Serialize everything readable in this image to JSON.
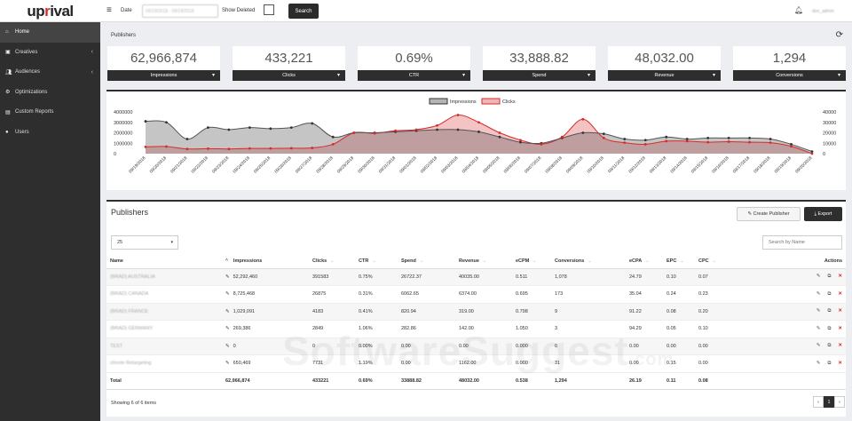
{
  "brand": {
    "logo_prefix": "up",
    "logo_accent": "r",
    "logo_suffix": "ival"
  },
  "topbar": {
    "menu_icon": "hamburger-icon",
    "date_label": "Date",
    "date_value": "09/19/2018 - 09/19/2018",
    "show_deleted_label": "Show Deleted",
    "search_label": "Search",
    "bell_icon": "bell-icon",
    "user": "don_admin"
  },
  "sidebar": {
    "items": [
      {
        "label": "Home",
        "icon": "home-icon",
        "active": true
      },
      {
        "label": "Creatives",
        "icon": "image-icon",
        "chevron": true
      },
      {
        "label": "Audiences",
        "icon": "users-icon",
        "chevron": true
      },
      {
        "label": "Optimizations",
        "icon": "cogs-icon"
      },
      {
        "label": "Custom Reports",
        "icon": "file-icon"
      },
      {
        "label": "Users",
        "icon": "user-icon"
      }
    ]
  },
  "page": {
    "title": "Publishers",
    "refresh_icon": "refresh-icon"
  },
  "stats": [
    {
      "value": "62,966,874",
      "label": "Impressions"
    },
    {
      "value": "433,221",
      "label": "Clicks"
    },
    {
      "value": "0.69%",
      "label": "CTR"
    },
    {
      "value": "33,888.82",
      "label": "Spend"
    },
    {
      "value": "48,032.00",
      "label": "Revenue"
    },
    {
      "value": "1,294",
      "label": "Conversions"
    }
  ],
  "chart_data": {
    "type": "area",
    "legend": [
      "Impressions",
      "Clicks"
    ],
    "legend_position": "top-center",
    "y_left_ticks": [
      "4000000",
      "3000000",
      "2000000",
      "1000000",
      "0"
    ],
    "y_right_ticks": [
      "40000",
      "30000",
      "20000",
      "10000",
      "0"
    ],
    "ylim_left": [
      0,
      4000000
    ],
    "ylim_right": [
      0,
      40000
    ],
    "colors": {
      "Impressions": "#555555",
      "Clicks": "#d62b2b"
    },
    "x": [
      "09/19/2018",
      "09/20/2018",
      "09/21/2018",
      "09/22/2018",
      "09/23/2018",
      "09/24/2018",
      "09/25/2018",
      "09/26/2018",
      "09/27/2018",
      "09/28/2018",
      "09/29/2018",
      "09/30/2018",
      "09/31/2018",
      "09/01/2018",
      "09/02/2018",
      "09/03/2018",
      "09/04/2018",
      "09/05/2018",
      "09/06/2018",
      "09/07/2018",
      "09/08/2018",
      "09/09/2018",
      "09/10/2018",
      "09/11/2018",
      "09/12/2018",
      "09/13/2018",
      "09/14/2018",
      "09/15/2018",
      "09/16/2018",
      "09/17/2018",
      "09/18/2018",
      "09/19/2018",
      "09/20/2018"
    ],
    "series": [
      {
        "name": "Impressions",
        "values": [
          3100000,
          3000000,
          1400000,
          2500000,
          2300000,
          2500000,
          2400000,
          2500000,
          2900000,
          1600000,
          2000000,
          2000000,
          2100000,
          2200000,
          2300000,
          2300000,
          2100000,
          1600000,
          1100000,
          1000000,
          1500000,
          2000000,
          1900000,
          1400000,
          1300000,
          1600000,
          1400000,
          1500000,
          1500000,
          1500000,
          1400000,
          900000,
          200000
        ]
      },
      {
        "name": "Clicks",
        "values": [
          6500,
          6800,
          4500,
          4800,
          4500,
          5000,
          5000,
          5200,
          5500,
          9000,
          20000,
          19500,
          22000,
          23000,
          27000,
          37000,
          30000,
          20000,
          13000,
          9000,
          16000,
          33000,
          15000,
          10500,
          9000,
          12000,
          12000,
          11000,
          11500,
          11000,
          10500,
          7000,
          0
        ]
      }
    ]
  },
  "table_panel": {
    "title": "Publishers",
    "create_label": "Create Publisher",
    "export_label": "Export",
    "page_size": "25",
    "search_placeholder": "Search by Name",
    "columns": [
      "Name",
      "Impressions",
      "Clicks",
      "CTR",
      "Spend",
      "Revenue",
      "eCPM",
      "Conversions",
      "eCPA",
      "EPC",
      "CPC",
      "Actions"
    ],
    "rows": [
      {
        "name": "(BRAD) AUSTRALIA",
        "impressions": "52,292,460",
        "clicks": "391583",
        "ctr": "0.75%",
        "spend": "26722.37",
        "revenue": "40035.00",
        "ecpm": "0.511",
        "conversions": "1,078",
        "ecpa": "24.79",
        "epc": "0.10",
        "cpc": "0.07"
      },
      {
        "name": "(BRAD) CANADA",
        "impressions": "8,725,468",
        "clicks": "26875",
        "ctr": "0.31%",
        "spend": "6062.65",
        "revenue": "6374.00",
        "ecpm": "0.695",
        "conversions": "173",
        "ecpa": "35.04",
        "epc": "0.24",
        "cpc": "0.23"
      },
      {
        "name": "(BRAD) FRANCE",
        "impressions": "1,029,091",
        "clicks": "4183",
        "ctr": "0.41%",
        "spend": "820.94",
        "revenue": "319.00",
        "ecpm": "0.798",
        "conversions": "9",
        "ecpa": "91.22",
        "epc": "0.08",
        "cpc": "0.20"
      },
      {
        "name": "(BRAD) GERMANY",
        "impressions": "269,386",
        "clicks": "2849",
        "ctr": "1.06%",
        "spend": "282.86",
        "revenue": "142.00",
        "ecpm": "1.050",
        "conversions": "3",
        "ecpa": "94.29",
        "epc": "0.05",
        "cpc": "0.10"
      },
      {
        "name": "TEST",
        "impressions": "0",
        "clicks": "0",
        "ctr": "0.00%",
        "spend": "0.00",
        "revenue": "0.00",
        "ecpm": "0.000",
        "conversions": "0",
        "ecpa": "0.00",
        "epc": "0.00",
        "cpc": "0.00"
      },
      {
        "name": "zImote Retargeting",
        "impressions": "650,469",
        "clicks": "7731",
        "ctr": "1.19%",
        "spend": "0.00",
        "revenue": "1162.00",
        "ecpm": "0.000",
        "conversions": "31",
        "ecpa": "0.00",
        "epc": "0.15",
        "cpc": "0.00"
      }
    ],
    "total": {
      "label": "Total",
      "impressions": "62,966,874",
      "clicks": "433221",
      "ctr": "0.69%",
      "spend": "33888.82",
      "revenue": "48032.00",
      "ecpm": "0.538",
      "conversions": "1,294",
      "ecpa": "26.19",
      "epc": "0.11",
      "cpc": "0.08"
    },
    "showing": "Showing 6 of 6 items",
    "pager": {
      "prev": "«",
      "current": "1",
      "next": "»"
    }
  },
  "watermark": {
    "text": "SoftwareSuggest",
    "suffix": ".com"
  }
}
